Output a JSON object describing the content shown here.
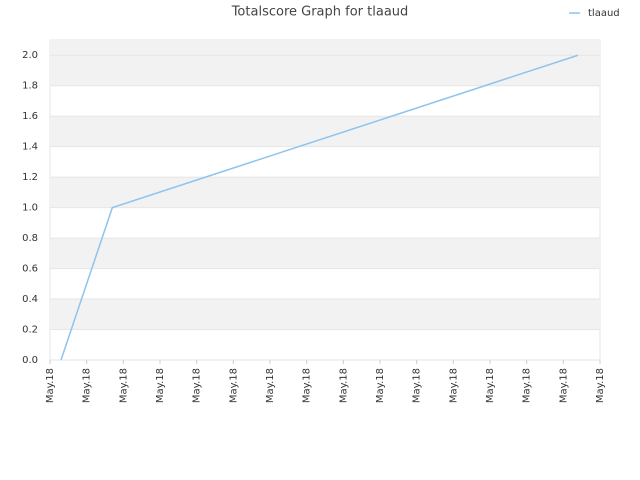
{
  "chart_data": {
    "type": "line",
    "title": "Totalscore Graph for tlaaud",
    "x": [
      0.3,
      1.7,
      14.4
    ],
    "series": [
      {
        "name": "tlaaud",
        "color": "#8cc4f0",
        "values": [
          0,
          1,
          2
        ]
      }
    ],
    "xlim": [
      0,
      15
    ],
    "xticks": [
      {
        "value": 0,
        "label": "May.18"
      },
      {
        "value": 1,
        "label": "May.18"
      },
      {
        "value": 2,
        "label": "May.18"
      },
      {
        "value": 3,
        "label": "May.18"
      },
      {
        "value": 4,
        "label": "May.18"
      },
      {
        "value": 5,
        "label": "May.18"
      },
      {
        "value": 6,
        "label": "May.18"
      },
      {
        "value": 7,
        "label": "May.18"
      },
      {
        "value": 8,
        "label": "May.18"
      },
      {
        "value": 9,
        "label": "May.18"
      },
      {
        "value": 10,
        "label": "May.18"
      },
      {
        "value": 11,
        "label": "May.18"
      },
      {
        "value": 12,
        "label": "May.18"
      },
      {
        "value": 13,
        "label": "May.18"
      },
      {
        "value": 14,
        "label": "May.18"
      },
      {
        "value": 15,
        "label": "May.18"
      }
    ],
    "ylim": [
      0,
      2.1
    ],
    "yticks": [
      {
        "value": 0,
        "label": "0.0"
      },
      0.2,
      0.4,
      0.6,
      0.8,
      {
        "value": 1,
        "label": "1.0"
      },
      1.2,
      1.4,
      1.6,
      1.8,
      {
        "value": 2,
        "label": "2.0"
      }
    ],
    "grid": true,
    "legend": "top-right"
  }
}
